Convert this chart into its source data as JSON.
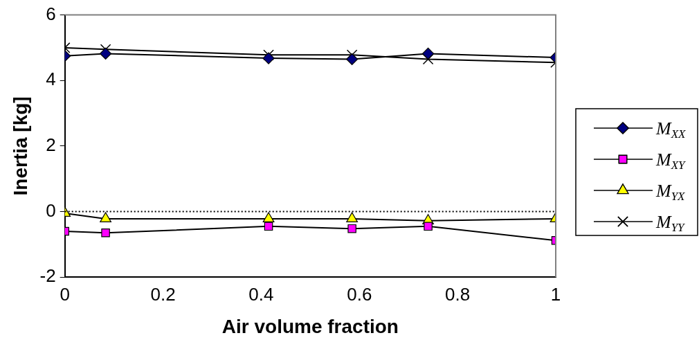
{
  "chart_data": {
    "type": "line",
    "xlabel": "Air volume fraction",
    "ylabel": "Inertia [kg]",
    "x": [
      0,
      0.083,
      0.415,
      0.585,
      0.74,
      1
    ],
    "xlim": [
      0,
      1
    ],
    "xticks": [
      0,
      0.2,
      0.4,
      0.6,
      0.8,
      1
    ],
    "ylim": [
      -2,
      6
    ],
    "yticks": [
      -2,
      0,
      2,
      4,
      6
    ],
    "grid": false,
    "legend": "right",
    "line_style": "solid",
    "ref_lines": [
      {
        "axis": "y",
        "value": 0,
        "line_style": "dotted",
        "color": "#000000"
      }
    ],
    "series": [
      {
        "name": "M$_{XX}$",
        "color": "#000080",
        "marker": "diamond",
        "values": [
          4.75,
          4.82,
          4.68,
          4.65,
          4.82,
          4.7
        ]
      },
      {
        "name": "M$_{XY}$",
        "color": "#ff00ff",
        "marker": "square",
        "values": [
          -0.6,
          -0.65,
          -0.45,
          -0.52,
          -0.45,
          -0.88
        ]
      },
      {
        "name": "M$_{YX}$",
        "color": "#ffff00",
        "marker": "triangle",
        "values": [
          -0.05,
          -0.22,
          -0.22,
          -0.22,
          -0.28,
          -0.22
        ]
      },
      {
        "name": "M$_{YY}$",
        "color": "#000000",
        "marker": "cross",
        "values": [
          5.0,
          4.95,
          4.78,
          4.78,
          4.65,
          4.55
        ]
      }
    ]
  }
}
